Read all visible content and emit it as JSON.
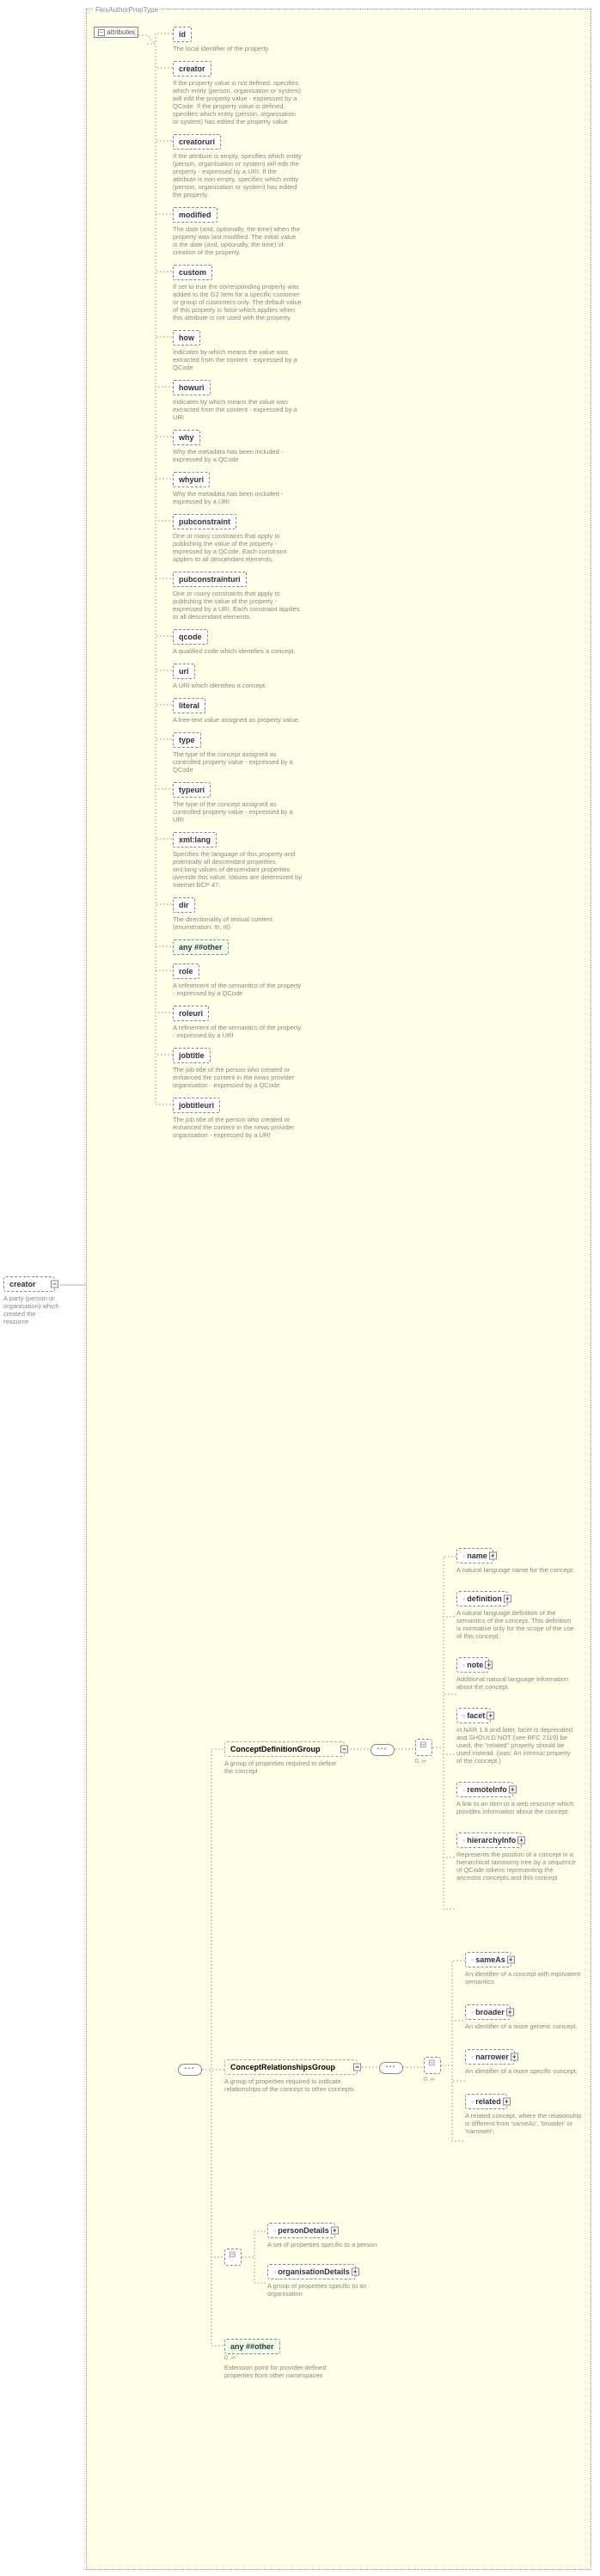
{
  "type_name": "FlexAuthorPropType",
  "root": {
    "name": "creator",
    "desc": "A party (person or organisation) which created the resource."
  },
  "attrs_label": "attributes",
  "attributes": [
    {
      "name": "id",
      "desc": "The local identifier of the property."
    },
    {
      "name": "creator",
      "desc": "If the property value is not defined, specifies which entity (person, organisation or system) will edit the property value - expressed by a QCode. If the property value is defined, specifies which entity (person, organisation or system) has edited the property value."
    },
    {
      "name": "creatoruri",
      "desc": "If the attribute is empty, specifies which entity (person, organisation or system) will edit the property - expressed by a URI. If the attribute is non-empty, specifies which entity (person, organisation or system) has edited the property."
    },
    {
      "name": "modified",
      "desc": "The date (and, optionally, the time) when the property was last modified. The initial value is the date (and, optionally, the time) of creation of the property."
    },
    {
      "name": "custom",
      "desc": "If set to true the corresponding property was added to the G2 Item for a specific customer or group of customers only. The default value of this property is false which applies when this attribute is not used with the property."
    },
    {
      "name": "how",
      "desc": "Indicates by which means the value was extracted from the content - expressed by a QCode"
    },
    {
      "name": "howuri",
      "desc": "Indicates by which means the value was extracted from the content - expressed by a URI"
    },
    {
      "name": "why",
      "desc": "Why the metadata has been included - expressed by a QCode"
    },
    {
      "name": "whyuri",
      "desc": "Why the metadata has been included - expressed by a URI"
    },
    {
      "name": "pubconstraint",
      "desc": "One or many constraints that apply to publishing the value of the property - expressed by a QCode. Each constraint applies to all descendant elements."
    },
    {
      "name": "pubconstrainturi",
      "desc": "One or many constraints that apply to publishing the value of the property - expressed by a URI. Each constraint applies to all descendant elements."
    },
    {
      "name": "qcode",
      "desc": "A qualified code which identifies a concept."
    },
    {
      "name": "uri",
      "desc": "A URI which identifies a concept."
    },
    {
      "name": "literal",
      "desc": "A free-text value assigned as property value."
    },
    {
      "name": "type",
      "desc": "The type of the concept assigned as controlled property value - expressed by a QCode"
    },
    {
      "name": "typeuri",
      "desc": "The type of the concept assigned as controlled property value - expressed by a URI"
    },
    {
      "name": "xml:lang",
      "desc": "Specifies the language of this property and potentially all descendant properties. xml:lang values of descendant properties override this value. Values are determined by Internet BCP 47."
    },
    {
      "name": "dir",
      "desc": "The directionality of textual content (enumeration: ltr, rtl)"
    },
    {
      "name": "any ##other",
      "desc": "",
      "wildcard": true
    },
    {
      "name": "role",
      "desc": "A refinement of the semantics of the property - expressed by a QCode"
    },
    {
      "name": "roleuri",
      "desc": "A refinement of the semantics of the property - expressed by a URI"
    },
    {
      "name": "jobtitle",
      "desc": "The job title of the person who created or enhanced the content in the news provider organisation - expressed by a QCode"
    },
    {
      "name": "jobtitleuri",
      "desc": "The job title of the person who created or enhanced the content in the news provider organisation - expressed by a URI"
    }
  ],
  "cdg": {
    "name": "ConceptDefinitionGroup",
    "desc": "A group of properties required to define the concept",
    "children": [
      {
        "name": "name",
        "desc": "A natural language name for the concept.",
        "plus": true
      },
      {
        "name": "definition",
        "desc": "A natural language definition of the semantics of the concept. This definition is normative only for the scope of the use of this concept.",
        "plus": true
      },
      {
        "name": "note",
        "desc": "Additional natural language information about the concept.",
        "plus": true
      },
      {
        "name": "facet",
        "desc": "In NAR 1.8 and later, facet is deprecated and SHOULD NOT (see RFC 2119) be used, the \"related\" property should be used instead. (was: An intrinsic property of the concept.)",
        "plus": true
      },
      {
        "name": "remoteInfo",
        "desc": "A link to an item or a web resource which provides information about the concept",
        "plus": true
      },
      {
        "name": "hierarchyInfo",
        "desc": "Represents the position of a concept in a hierarchical taxonomy tree by a sequence of QCode tokens representing the ancestor concepts and this concept",
        "plus": true
      }
    ]
  },
  "crg": {
    "name": "ConceptRelationshipsGroup",
    "desc": "A group of properties required to indicate relationships of the concept to other concepts",
    "children": [
      {
        "name": "sameAs",
        "desc": "An identifier of a concept with equivalent semantics",
        "plus": true
      },
      {
        "name": "broader",
        "desc": "An identifier of a more generic concept.",
        "plus": true
      },
      {
        "name": "narrower",
        "desc": "An identifier of a more specific concept.",
        "plus": true
      },
      {
        "name": "related",
        "desc": "A related concept, where the relationship is different from 'sameAs', 'broader' or 'narrower'.",
        "plus": true
      }
    ]
  },
  "choice_children": [
    {
      "name": "personDetails",
      "desc": "A set of properties specific to a person",
      "plus": true
    },
    {
      "name": "organisationDetails",
      "desc": "A group of properties specific to an organisation",
      "plus": true
    }
  ],
  "any_other": {
    "name": "any ##other",
    "desc": "Extension point for provider-defined properties from other namespaces",
    "occurs": "0..∞"
  },
  "occurs_inf": "0..∞",
  "colors": {
    "bg": "#ffffe8",
    "border": "#888888",
    "desc": "#888888"
  }
}
